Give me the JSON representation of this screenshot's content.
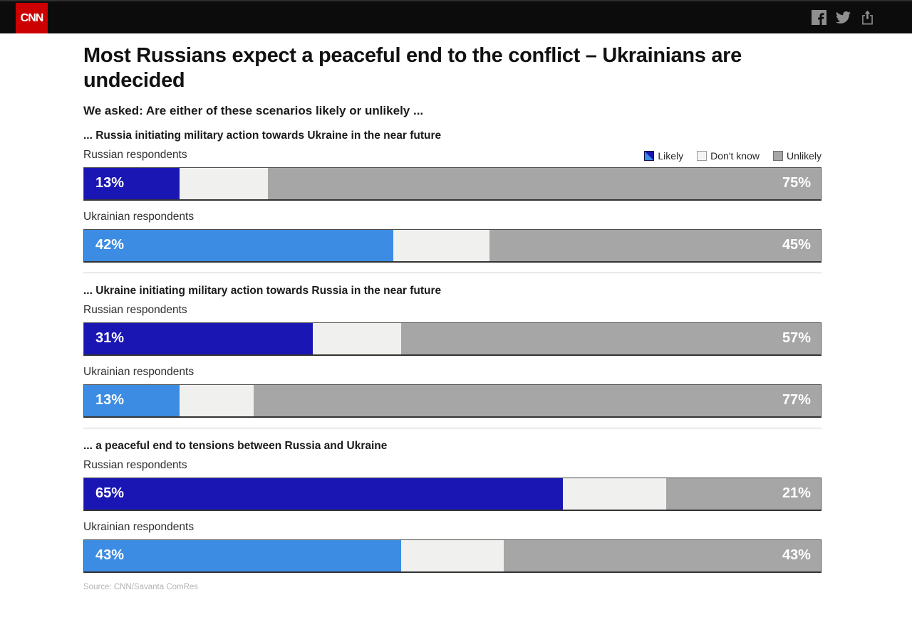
{
  "header": {
    "logo": "CNN",
    "social": [
      "facebook",
      "twitter",
      "share"
    ]
  },
  "title": "Most Russians expect a peaceful end to the conflict – Ukrainians are undecided",
  "subtitle": "We asked: Are either of these scenarios likely or unlikely ...",
  "legend": {
    "items": [
      {
        "label": "Likely",
        "swatch": "likely"
      },
      {
        "label": "Don't know",
        "swatch": "dontknow"
      },
      {
        "label": "Unlikely",
        "swatch": "unlikely"
      }
    ]
  },
  "colors": {
    "likely_russian": "#1a16b3",
    "likely_ukrainian": "#3b8ce2",
    "dont_know": "#f0f0ee",
    "unlikely": "#a6a6a6",
    "cnn_red": "#cc0000"
  },
  "source": "Source: CNN/Savanta ComRes",
  "chart_data": {
    "type": "bar",
    "subtype": "horizontal-stacked-100percent",
    "title": "Most Russians expect a peaceful end to the conflict – Ukrainians are undecided",
    "question": "We asked: Are either of these scenarios likely or unlikely ...",
    "legend": [
      "Likely",
      "Don't know",
      "Unlikely"
    ],
    "legend_position": "top-right",
    "value_unit": "%",
    "xlim": [
      0,
      100
    ],
    "sections": [
      {
        "heading": "... Russia initiating military action towards Ukraine in the near future",
        "rows": [
          {
            "group": "Russian respondents",
            "likely": 13,
            "dont_know": 12,
            "unlikely": 75
          },
          {
            "group": "Ukrainian respondents",
            "likely": 42,
            "dont_know": 13,
            "unlikely": 45
          }
        ]
      },
      {
        "heading": "... Ukraine initiating military action towards Russia in the near future",
        "rows": [
          {
            "group": "Russian respondents",
            "likely": 31,
            "dont_know": 12,
            "unlikely": 57
          },
          {
            "group": "Ukrainian respondents",
            "likely": 13,
            "dont_know": 10,
            "unlikely": 77
          }
        ]
      },
      {
        "heading": "... a peaceful end to tensions between Russia and Ukraine",
        "rows": [
          {
            "group": "Russian respondents",
            "likely": 65,
            "dont_know": 14,
            "unlikely": 21
          },
          {
            "group": "Ukrainian respondents",
            "likely": 43,
            "dont_know": 14,
            "unlikely": 43
          }
        ]
      }
    ],
    "source": "Source: CNN/Savanta ComRes"
  }
}
